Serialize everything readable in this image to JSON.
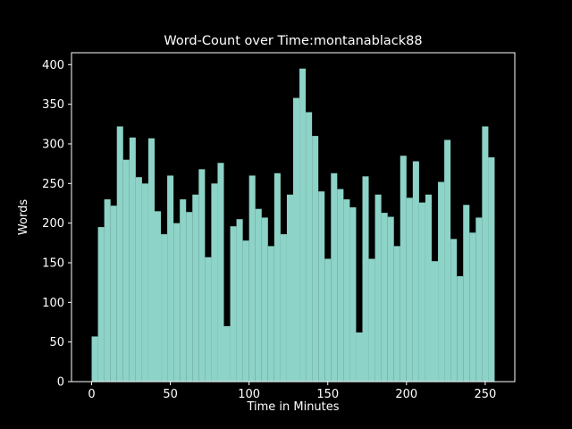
{
  "chart_data": {
    "type": "bar",
    "title": "Word-Count over Time:montanablack88",
    "xlabel": "Time in Minutes",
    "ylabel": "Words",
    "x_tick_labels": [
      "0",
      "50",
      "100",
      "150",
      "200",
      "250"
    ],
    "x_tick_values": [
      0,
      50,
      100,
      150,
      200,
      250
    ],
    "y_tick_labels": [
      "0",
      "50",
      "100",
      "150",
      "200",
      "250",
      "300",
      "350",
      "400"
    ],
    "y_tick_values": [
      0,
      50,
      100,
      150,
      200,
      250,
      300,
      350,
      400
    ],
    "xlim": [
      -12.8,
      268.8
    ],
    "ylim": [
      0,
      415
    ],
    "grid": false,
    "legend": false,
    "bin_width_minutes": 4,
    "x_bin_start_minutes": [
      0,
      4,
      8,
      12,
      16,
      20,
      24,
      28,
      32,
      36,
      40,
      44,
      48,
      52,
      56,
      60,
      64,
      68,
      72,
      76,
      80,
      84,
      88,
      92,
      96,
      100,
      104,
      108,
      112,
      116,
      120,
      124,
      128,
      132,
      136,
      140,
      144,
      148,
      152,
      156,
      160,
      164,
      168,
      172,
      176,
      180,
      184,
      188,
      192,
      196,
      200,
      204,
      208,
      212,
      216,
      220,
      224,
      228,
      232,
      236,
      240,
      244,
      248,
      252
    ],
    "values": [
      57,
      195,
      230,
      222,
      322,
      280,
      308,
      258,
      250,
      307,
      215,
      186,
      260,
      200,
      230,
      214,
      236,
      268,
      157,
      250,
      276,
      70,
      196,
      205,
      178,
      260,
      218,
      207,
      171,
      263,
      186,
      236,
      358,
      395,
      340,
      310,
      240,
      155,
      263,
      243,
      230,
      220,
      62,
      259,
      155,
      236,
      213,
      208,
      171,
      285,
      232,
      278,
      226,
      236,
      152,
      252,
      305,
      180,
      133,
      223,
      188,
      207,
      322,
      283
    ],
    "colors": {
      "bar": "#8dd3c7",
      "text": "#ffffff",
      "spine": "#ffffff",
      "background": "#000000"
    }
  }
}
